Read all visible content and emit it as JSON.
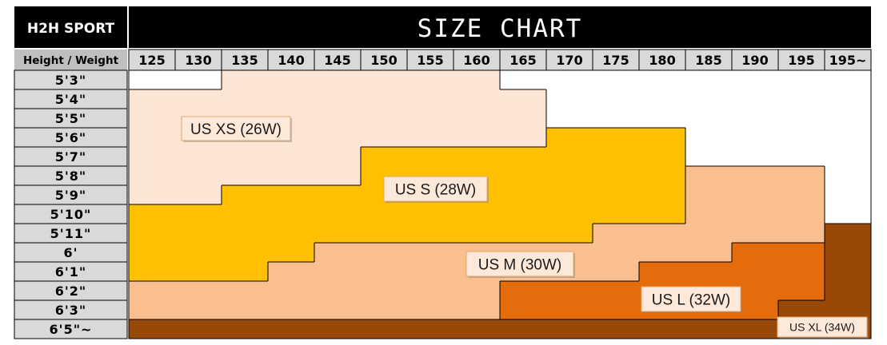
{
  "chart_data": {
    "type": "heatmap",
    "brand": "H2H SPORT",
    "title": "SIZE CHART",
    "corner_label": "Height / Weight",
    "columns": [
      "125",
      "130",
      "135",
      "140",
      "145",
      "150",
      "155",
      "160",
      "165",
      "170",
      "175",
      "180",
      "185",
      "190",
      "195",
      "195~"
    ],
    "rows": [
      "5'3\"",
      "5'4\"",
      "5'5\"",
      "5'6\"",
      "5'7\"",
      "5'8\"",
      "5'9\"",
      "5'10\"",
      "5'11\"",
      "6'",
      "6'1\"",
      "6'2\"",
      "6'3\"",
      "6'5\"~"
    ],
    "size_labels": [
      {
        "code": "XS",
        "label": "US XS (26W)",
        "color": "#fce5d5"
      },
      {
        "code": "S",
        "label": "US S (28W)",
        "color": "#ffc000"
      },
      {
        "code": "M",
        "label": "US M (30W)",
        "color": "#f9bf8f"
      },
      {
        "code": "L",
        "label": "US L (32W)",
        "color": "#e46c0a"
      },
      {
        "code": "XL",
        "label": "US XL (34W)",
        "color": "#984807"
      }
    ],
    "grid": [
      [
        "",
        "",
        "XS",
        "XS",
        "XS",
        "XS",
        "XS",
        "XS",
        "",
        "",
        "",
        "",
        "",
        "",
        "",
        ""
      ],
      [
        "XS",
        "XS",
        "XS",
        "XS",
        "XS",
        "XS",
        "XS",
        "XS",
        "XS",
        "",
        "",
        "",
        "",
        "",
        "",
        ""
      ],
      [
        "XS",
        "XS",
        "XS",
        "XS",
        "XS",
        "XS",
        "XS",
        "XS",
        "XS",
        "",
        "",
        "",
        "",
        "",
        "",
        ""
      ],
      [
        "XS",
        "XS",
        "XS",
        "XS",
        "XS",
        "XS",
        "XS",
        "XS",
        "XS",
        "S",
        "S",
        "S",
        "",
        "",
        "",
        ""
      ],
      [
        "XS",
        "XS",
        "XS",
        "XS",
        "XS",
        "S",
        "S",
        "S",
        "S",
        "S",
        "S",
        "S",
        "",
        "",
        "",
        ""
      ],
      [
        "XS",
        "XS",
        "XS",
        "XS",
        "XS",
        "S",
        "S",
        "S",
        "S",
        "S",
        "S",
        "S",
        "M",
        "M",
        "M",
        ""
      ],
      [
        "XS",
        "XS",
        "S",
        "S",
        "S",
        "S",
        "S",
        "S",
        "S",
        "S",
        "S",
        "S",
        "M",
        "M",
        "M",
        ""
      ],
      [
        "S",
        "S",
        "S",
        "S",
        "S",
        "S",
        "S",
        "S",
        "S",
        "S",
        "S",
        "S",
        "M",
        "M",
        "M",
        ""
      ],
      [
        "S",
        "S",
        "S",
        "S",
        "S",
        "S",
        "S",
        "S",
        "S",
        "S",
        "M",
        "M",
        "M",
        "M",
        "M",
        "XL"
      ],
      [
        "S",
        "S",
        "S",
        "S",
        "M",
        "M",
        "M",
        "M",
        "M",
        "M",
        "M",
        "M",
        "M",
        "L",
        "L",
        "XL"
      ],
      [
        "S",
        "S",
        "S",
        "M",
        "M",
        "M",
        "M",
        "M",
        "M",
        "M",
        "M",
        "L",
        "L",
        "L",
        "L",
        "XL"
      ],
      [
        "M",
        "M",
        "M",
        "M",
        "M",
        "M",
        "M",
        "M",
        "L",
        "L",
        "L",
        "L",
        "L",
        "L",
        "L",
        "XL"
      ],
      [
        "M",
        "M",
        "M",
        "M",
        "M",
        "M",
        "M",
        "M",
        "L",
        "L",
        "L",
        "L",
        "L",
        "L",
        "XL",
        "XL"
      ],
      [
        "XL",
        "XL",
        "XL",
        "XL",
        "XL",
        "XL",
        "XL",
        "XL",
        "XL",
        "XL",
        "XL",
        "XL",
        "XL",
        "XL",
        "XL",
        "XL"
      ]
    ]
  }
}
